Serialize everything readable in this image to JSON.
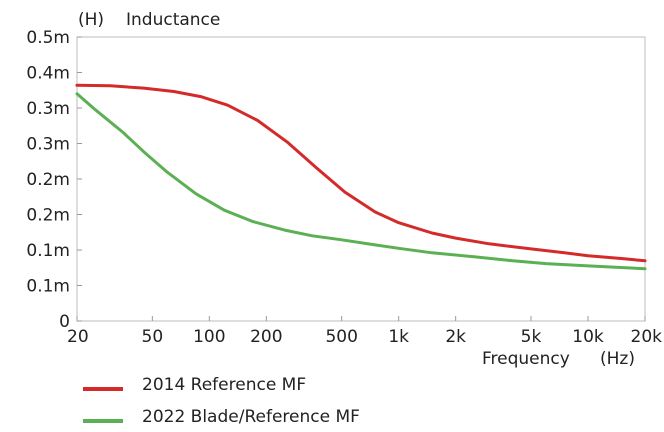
{
  "chart_data": {
    "type": "line",
    "title": "",
    "ylabel_unit": "(H)",
    "ylabel": "Inductance",
    "xlabel": "Frequency",
    "xlabel_unit": "(Hz)",
    "x_scale": "log",
    "xlim": [
      20,
      20000
    ],
    "ylim": [
      0,
      0.0005
    ],
    "grid": false,
    "legend_position": "bottom-left",
    "x_ticks": [
      {
        "value": 20,
        "label": "20"
      },
      {
        "value": 50,
        "label": "50"
      },
      {
        "value": 100,
        "label": "100"
      },
      {
        "value": 200,
        "label": "200"
      },
      {
        "value": 500,
        "label": "500"
      },
      {
        "value": 1000,
        "label": "1k"
      },
      {
        "value": 2000,
        "label": "2k"
      },
      {
        "value": 5000,
        "label": "5k"
      },
      {
        "value": 10000,
        "label": "10k"
      },
      {
        "value": 20000,
        "label": "20k"
      }
    ],
    "y_ticks": [
      {
        "value": 0,
        "label": "0"
      },
      {
        "value": 6.25e-05,
        "label": "0.1m"
      },
      {
        "value": 0.000125,
        "label": "0.1m"
      },
      {
        "value": 0.0001875,
        "label": "0.2m"
      },
      {
        "value": 0.00025,
        "label": "0.2m"
      },
      {
        "value": 0.0003125,
        "label": "0.3m"
      },
      {
        "value": 0.000375,
        "label": "0.3m"
      },
      {
        "value": 0.0004375,
        "label": "0.4m"
      },
      {
        "value": 0.0005,
        "label": "0.5m"
      }
    ],
    "series": [
      {
        "name": "2014 Reference MF",
        "color": "#d42a2a",
        "points": [
          [
            20,
            0.000415
          ],
          [
            30,
            0.000414
          ],
          [
            45,
            0.00041
          ],
          [
            65,
            0.000404
          ],
          [
            90,
            0.000395
          ],
          [
            125,
            0.00038
          ],
          [
            180,
            0.000353
          ],
          [
            260,
            0.000314
          ],
          [
            370,
            0.000269
          ],
          [
            520,
            0.000227
          ],
          [
            750,
            0.000192
          ],
          [
            1000,
            0.000173
          ],
          [
            1500,
            0.000155
          ],
          [
            2000,
            0.000146
          ],
          [
            3000,
            0.000136
          ],
          [
            5000,
            0.000127
          ],
          [
            7500,
            0.00012
          ],
          [
            10000,
            0.000115
          ],
          [
            15000,
            0.00011
          ],
          [
            20000,
            0.000106
          ]
        ]
      },
      {
        "name": "2022 Blade/Reference MF",
        "color": "#5bb053",
        "points": [
          [
            20,
            0.0004
          ],
          [
            25,
            0.000372
          ],
          [
            35,
            0.000332
          ],
          [
            45,
            0.000298
          ],
          [
            60,
            0.000262
          ],
          [
            85,
            0.000224
          ],
          [
            120,
            0.000195
          ],
          [
            170,
            0.000175
          ],
          [
            250,
            0.00016
          ],
          [
            350,
            0.00015
          ],
          [
            500,
            0.000143
          ],
          [
            750,
            0.000134
          ],
          [
            1000,
            0.000128
          ],
          [
            1500,
            0.00012
          ],
          [
            2500,
            0.000113
          ],
          [
            4000,
            0.000106
          ],
          [
            6000,
            0.000101
          ],
          [
            10000,
            9.7e-05
          ],
          [
            20000,
            9.2e-05
          ]
        ]
      }
    ]
  }
}
